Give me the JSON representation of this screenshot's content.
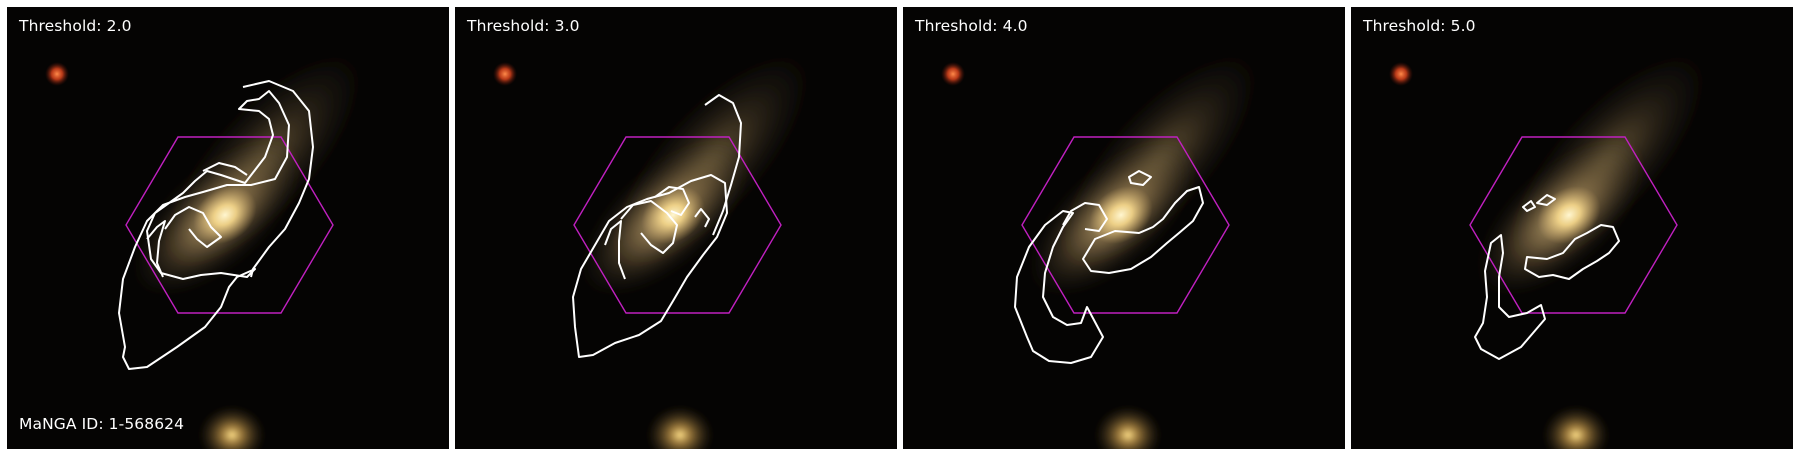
{
  "panels": [
    {
      "threshold_label": "Threshold: 2.0"
    },
    {
      "threshold_label": "Threshold: 3.0"
    },
    {
      "threshold_label": "Threshold: 4.0"
    },
    {
      "threshold_label": "Threshold: 5.0"
    }
  ],
  "manga_id_label": "MaNGA ID: 1-568624",
  "colors": {
    "hexagon": "#c020c0",
    "contour": "#ffffff",
    "background": "#050403",
    "galaxy_core": "#ffe9a8",
    "star": "#ff5a2a"
  },
  "icons": {
    "ifu_footprint": "hexagon",
    "contours": "contour-lines"
  }
}
